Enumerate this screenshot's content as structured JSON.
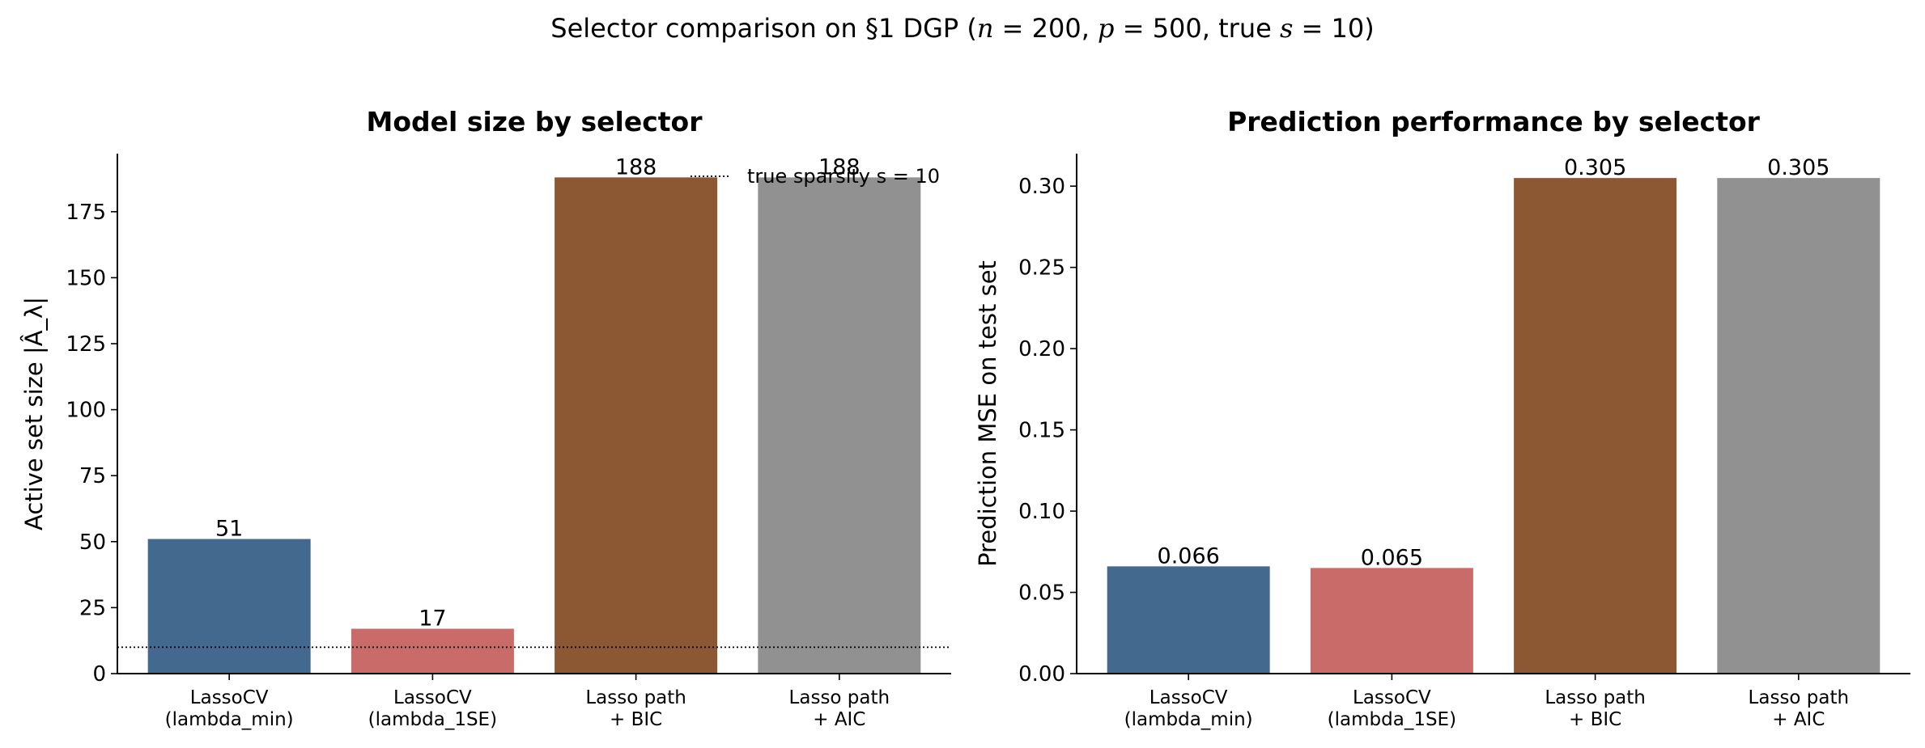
{
  "figure": {
    "suptitle": "Selector comparison on §1 DGP (n = 200, p = 500, true s = 10)"
  },
  "chart_data": [
    {
      "type": "bar",
      "title": "Model size by selector",
      "xlabel": "",
      "ylabel": "Active set size |Â_λ|",
      "categories": [
        "LassoCV\n(lambda_min)",
        "LassoCV\n(lambda_1SE)",
        "Lasso path\n+ BIC",
        "Lasso path\n+ AIC"
      ],
      "values": [
        51,
        17,
        188,
        188
      ],
      "value_labels": [
        "51",
        "17",
        "188",
        "188"
      ],
      "colors": [
        "#436a8e",
        "#c96b69",
        "#8c5733",
        "#919191"
      ],
      "ylim": [
        0,
        197
      ],
      "yticks": [
        0,
        25,
        50,
        75,
        100,
        125,
        150,
        175
      ],
      "reference_line": {
        "value": 10,
        "style": "dotted",
        "label": "true sparsity s = 10"
      },
      "legend_position": "upper right",
      "grid": false
    },
    {
      "type": "bar",
      "title": "Prediction performance by selector",
      "xlabel": "",
      "ylabel": "Prediction MSE on test set",
      "categories": [
        "LassoCV\n(lambda_min)",
        "LassoCV\n(lambda_1SE)",
        "Lasso path\n+ BIC",
        "Lasso path\n+ AIC"
      ],
      "values": [
        0.066,
        0.065,
        0.305,
        0.305
      ],
      "value_labels": [
        "0.066",
        "0.065",
        "0.305",
        "0.305"
      ],
      "colors": [
        "#436a8e",
        "#c96b69",
        "#8c5733",
        "#919191"
      ],
      "ylim": [
        0,
        0.32
      ],
      "yticks": [
        "0.00",
        "0.05",
        "0.10",
        "0.15",
        "0.20",
        "0.25",
        "0.30"
      ],
      "grid": false
    }
  ]
}
